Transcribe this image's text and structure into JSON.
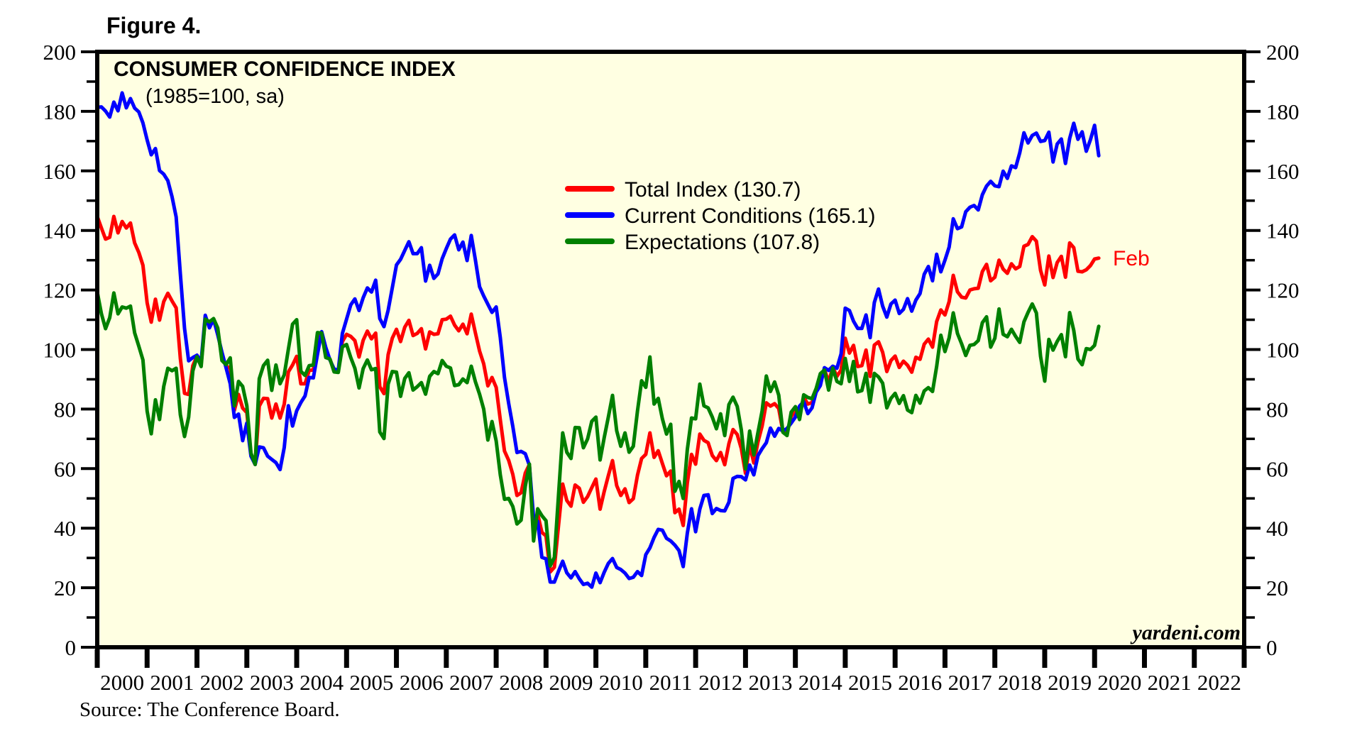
{
  "figure": {
    "label": "Figure 4."
  },
  "chart": {
    "watermark": "yardeni.com",
    "plot_bg": "#FFFFE2",
    "axis_color": "#000000"
  },
  "source": {
    "text": "Source: The Conference Board."
  },
  "chart_data": {
    "type": "line",
    "title": "CONSUMER CONFIDENCE INDEX",
    "subtitle": "(1985=100, sa)",
    "frequency": "monthly",
    "x_range": [
      2000,
      2023
    ],
    "x_tick_labels": [
      "2000",
      "2001",
      "2002",
      "2003",
      "2004",
      "2005",
      "2006",
      "2007",
      "2008",
      "2009",
      "2010",
      "2011",
      "2012",
      "2013",
      "2014",
      "2015",
      "2016",
      "2017",
      "2018",
      "2019",
      "2020",
      "2021",
      "2022"
    ],
    "ylim": [
      0,
      200
    ],
    "y_tick_step": 20,
    "y_minor_step": 10,
    "grid": false,
    "legend_position": "inside-upper-middle",
    "end_label": {
      "text": "Feb",
      "color": "#FF0000"
    },
    "series": [
      {
        "id": "total-index",
        "name": "Total Index (130.7)",
        "color": "#FF0000",
        "start": 2000,
        "values": [
          144.7,
          140.8,
          137.1,
          137.7,
          144.7,
          139.2,
          143.0,
          140.8,
          142.5,
          135.8,
          132.6,
          128.3,
          115.7,
          109.2,
          116.9,
          109.9,
          116.1,
          118.9,
          116.3,
          114.0,
          97.0,
          85.3,
          84.9,
          94.6,
          97.8,
          95.0,
          110.7,
          108.5,
          110.3,
          106.3,
          97.4,
          94.5,
          93.7,
          79.6,
          84.9,
          80.3,
          78.8,
          64.8,
          61.4,
          81.0,
          83.6,
          83.5,
          77.0,
          81.7,
          77.0,
          81.7,
          92.5,
          94.8,
          97.7,
          88.5,
          88.5,
          93.0,
          93.1,
          102.8,
          105.7,
          98.7,
          96.7,
          92.9,
          92.6,
          102.7,
          105.1,
          104.4,
          103.0,
          97.5,
          103.1,
          106.2,
          103.6,
          105.5,
          87.5,
          85.2,
          98.3,
          103.8,
          106.8,
          102.7,
          107.5,
          109.8,
          104.7,
          105.4,
          107.0,
          100.2,
          105.9,
          105.1,
          105.3,
          110.0,
          110.2,
          111.2,
          108.2,
          106.3,
          108.5,
          105.3,
          111.9,
          105.6,
          99.5,
          95.2,
          87.8,
          90.6,
          87.3,
          76.4,
          65.9,
          62.8,
          58.1,
          51.0,
          51.9,
          58.5,
          61.4,
          38.8,
          44.7,
          38.6,
          37.4,
          25.3,
          26.9,
          40.8,
          54.8,
          49.3,
          47.4,
          54.5,
          53.4,
          48.7,
          50.6,
          53.6,
          56.5,
          46.4,
          52.3,
          57.7,
          62.7,
          54.3,
          51.0,
          53.2,
          48.6,
          49.9,
          57.8,
          63.4,
          64.8,
          72.0,
          63.8,
          66.0,
          61.7,
          57.6,
          59.2,
          45.2,
          46.4,
          40.9,
          55.2,
          64.8,
          61.5,
          71.6,
          69.5,
          68.7,
          64.4,
          62.7,
          65.4,
          61.3,
          68.4,
          73.1,
          71.5,
          66.7,
          58.4,
          68.0,
          61.9,
          69.0,
          74.3,
          82.1,
          81.0,
          81.8,
          80.2,
          72.4,
          72.0,
          77.5,
          79.4,
          78.3,
          83.9,
          81.7,
          82.2,
          86.4,
          90.3,
          93.4,
          89.0,
          94.1,
          91.0,
          93.1,
          103.8,
          98.8,
          101.4,
          94.3,
          94.6,
          99.8,
          91.0,
          101.5,
          102.6,
          99.1,
          92.6,
          96.3,
          97.8,
          94.0,
          96.1,
          94.7,
          92.4,
          97.4,
          96.7,
          101.8,
          103.5,
          100.8,
          109.4,
          113.3,
          111.6,
          116.1,
          124.9,
          119.4,
          117.6,
          117.3,
          120.0,
          120.4,
          120.6,
          126.2,
          128.6,
          123.1,
          124.3,
          130.0,
          127.0,
          125.6,
          128.8,
          127.1,
          127.9,
          134.7,
          135.3,
          137.9,
          136.4,
          126.6,
          121.7,
          131.4,
          124.2,
          129.2,
          131.3,
          124.3,
          135.8,
          134.2,
          126.3,
          126.1,
          126.8,
          128.2,
          130.4,
          130.7
        ]
      },
      {
        "id": "current-conditions",
        "name": "Current Conditions (165.1)",
        "color": "#0000FF",
        "start": 2000,
        "values": [
          181.3,
          181.5,
          180.1,
          178.1,
          183.1,
          180.2,
          186.2,
          181.2,
          184.3,
          181.1,
          179.8,
          176.1,
          170.4,
          165.4,
          167.5,
          160.1,
          158.9,
          156.7,
          151.3,
          144.5,
          125.4,
          107.1,
          96.2,
          97.3,
          98.1,
          96.0,
          111.5,
          107.3,
          110.2,
          104.9,
          99.1,
          93.9,
          88.5,
          77.2,
          78.3,
          69.4,
          75.3,
          64.2,
          61.4,
          67.3,
          67.0,
          64.2,
          63.1,
          62.0,
          59.7,
          67.1,
          81.1,
          74.3,
          79.4,
          82.2,
          84.4,
          90.6,
          90.5,
          98.4,
          106.0,
          100.7,
          96.5,
          93.5,
          93.0,
          105.4,
          110.2,
          115.0,
          117.0,
          113.1,
          117.4,
          120.7,
          119.3,
          123.3,
          110.4,
          107.7,
          113.2,
          120.7,
          128.4,
          130.3,
          133.3,
          136.2,
          132.2,
          132.2,
          134.2,
          123.0,
          128.3,
          123.9,
          125.4,
          130.5,
          133.9,
          137.1,
          138.5,
          133.5,
          136.1,
          129.9,
          138.3,
          130.1,
          121.1,
          118.0,
          115.2,
          112.5,
          114.3,
          104.0,
          90.6,
          81.9,
          74.2,
          65.4,
          65.8,
          65.0,
          61.1,
          43.5,
          42.3,
          30.2,
          29.7,
          21.9,
          21.9,
          25.5,
          28.9,
          25.0,
          23.3,
          25.4,
          23.0,
          21.1,
          21.5,
          20.2,
          24.9,
          21.7,
          25.2,
          28.2,
          29.8,
          26.8,
          26.1,
          24.9,
          23.1,
          23.5,
          25.4,
          24.1,
          31.1,
          33.4,
          36.9,
          39.6,
          39.3,
          36.6,
          35.7,
          34.3,
          32.5,
          27.1,
          38.3,
          46.5,
          38.8,
          46.4,
          51.0,
          51.2,
          44.9,
          46.6,
          45.9,
          45.8,
          48.7,
          56.7,
          57.4,
          57.3,
          56.2,
          61.2,
          57.9,
          64.4,
          66.7,
          68.7,
          73.6,
          70.9,
          73.5,
          72.6,
          73.5,
          75.3,
          77.3,
          81.0,
          82.5,
          78.5,
          80.4,
          85.7,
          87.9,
          93.9,
          93.0,
          94.4,
          93.7,
          98.6,
          113.9,
          113.1,
          109.5,
          107.1,
          107.1,
          111.6,
          104.0,
          115.8,
          120.3,
          114.6,
          110.9,
          115.3,
          116.6,
          112.1,
          113.5,
          117.1,
          112.9,
          116.6,
          118.8,
          125.3,
          127.9,
          123.1,
          132.0,
          126.1,
          130.0,
          134.4,
          143.9,
          140.6,
          141.2,
          146.3,
          147.8,
          148.4,
          146.9,
          152.0,
          154.9,
          156.5,
          155.0,
          154.7,
          159.9,
          157.5,
          161.7,
          161.1,
          166.1,
          172.8,
          169.4,
          171.9,
          172.7,
          169.9,
          170.2,
          173.0,
          163.0,
          169.0,
          170.7,
          162.5,
          170.9,
          176.0,
          170.6,
          173.1,
          166.6,
          170.5,
          175.3,
          165.1
        ]
      },
      {
        "id": "expectations",
        "name": "Expectations (107.8)",
        "color": "#008000",
        "start": 2000,
        "values": [
          119.4,
          112.0,
          107.0,
          110.7,
          119.0,
          112.0,
          114.3,
          113.9,
          114.6,
          105.6,
          101.1,
          96.5,
          79.3,
          71.7,
          83.1,
          76.5,
          87.6,
          93.7,
          92.9,
          93.7,
          78.1,
          70.8,
          77.3,
          92.8,
          97.6,
          94.3,
          110.2,
          109.3,
          110.4,
          107.2,
          96.3,
          94.9,
          97.2,
          81.1,
          89.3,
          87.6,
          81.1,
          65.2,
          61.4,
          90.2,
          94.6,
          96.4,
          86.3,
          94.8,
          88.5,
          91.5,
          100.1,
          108.5,
          110.0,
          92.7,
          91.3,
          94.6,
          94.8,
          105.7,
          105.5,
          97.3,
          96.8,
          92.5,
          92.3,
          100.9,
          101.7,
          97.3,
          93.7,
          87.1,
          93.6,
          96.5,
          93.2,
          93.6,
          72.3,
          70.1,
          88.4,
          92.6,
          92.4,
          84.3,
          90.3,
          92.2,
          86.4,
          87.5,
          88.9,
          85.0,
          91.0,
          92.6,
          91.9,
          96.3,
          94.4,
          93.8,
          87.9,
          88.2,
          90.1,
          88.9,
          94.4,
          89.2,
          85.0,
          80.0,
          69.6,
          75.8,
          69.3,
          57.9,
          49.7,
          50.0,
          47.3,
          41.4,
          42.7,
          54.1,
          61.5,
          35.7,
          46.5,
          44.2,
          42.5,
          27.3,
          30.2,
          51.0,
          72.0,
          65.5,
          63.4,
          73.8,
          73.7,
          67.0,
          70.0,
          75.9,
          77.3,
          62.9,
          70.4,
          77.4,
          84.6,
          72.7,
          67.5,
          72.0,
          65.5,
          67.5,
          79.4,
          89.5,
          87.3,
          97.5,
          81.7,
          83.6,
          76.7,
          71.6,
          74.9,
          52.4,
          55.7,
          50.0,
          66.4,
          77.0,
          76.7,
          88.4,
          81.1,
          80.4,
          77.3,
          73.4,
          78.4,
          71.1,
          81.5,
          84.0,
          80.9,
          73.0,
          59.9,
          72.6,
          64.6,
          72.2,
          79.4,
          91.1,
          85.9,
          89.1,
          84.7,
          72.2,
          71.1,
          79.0,
          80.8,
          76.5,
          84.8,
          83.9,
          83.5,
          86.9,
          91.9,
          93.1,
          86.4,
          93.8,
          89.3,
          88.5,
          97.0,
          89.3,
          96.0,
          85.8,
          86.2,
          92.0,
          82.3,
          92.0,
          90.8,
          88.7,
          80.4,
          83.6,
          85.3,
          81.9,
          84.5,
          79.7,
          78.8,
          84.6,
          82.0,
          86.1,
          87.2,
          85.9,
          94.3,
          104.8,
          99.3,
          103.9,
          112.3,
          105.4,
          101.9,
          98.0,
          101.4,
          101.7,
          103.0,
          109.0,
          111.0,
          100.8,
          103.8,
          113.6,
          105.1,
          104.3,
          106.8,
          104.4,
          102.4,
          109.3,
          112.5,
          115.3,
          112.3,
          97.7,
          89.4,
          103.4,
          99.8,
          102.7,
          105.0,
          97.6,
          112.4,
          106.4,
          96.8,
          94.9,
          100.3,
          100.0,
          101.4,
          107.8
        ]
      }
    ]
  }
}
